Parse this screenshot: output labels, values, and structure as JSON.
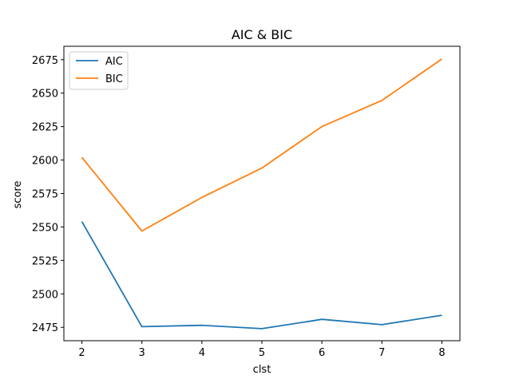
{
  "chart_data": {
    "type": "line",
    "title": "AIC & BIC",
    "xlabel": "clst",
    "ylabel": "score",
    "x": [
      2,
      3,
      4,
      5,
      6,
      7,
      8
    ],
    "xlim": [
      1.7,
      8.3
    ],
    "ylim": [
      2465,
      2685
    ],
    "xticks": [
      2,
      3,
      4,
      5,
      6,
      7,
      8
    ],
    "yticks": [
      2475,
      2500,
      2525,
      2550,
      2575,
      2600,
      2625,
      2650,
      2675
    ],
    "grid": false,
    "legend": "upper left",
    "series": [
      {
        "name": "AIC",
        "color": "#1f77b4",
        "values": [
          2554,
          2475.5,
          2476.5,
          2474,
          2481,
          2477,
          2484
        ]
      },
      {
        "name": "BIC",
        "color": "#ff7f0e",
        "values": [
          2602,
          2547,
          2572,
          2594,
          2625,
          2644.5,
          2675.5
        ]
      }
    ]
  }
}
